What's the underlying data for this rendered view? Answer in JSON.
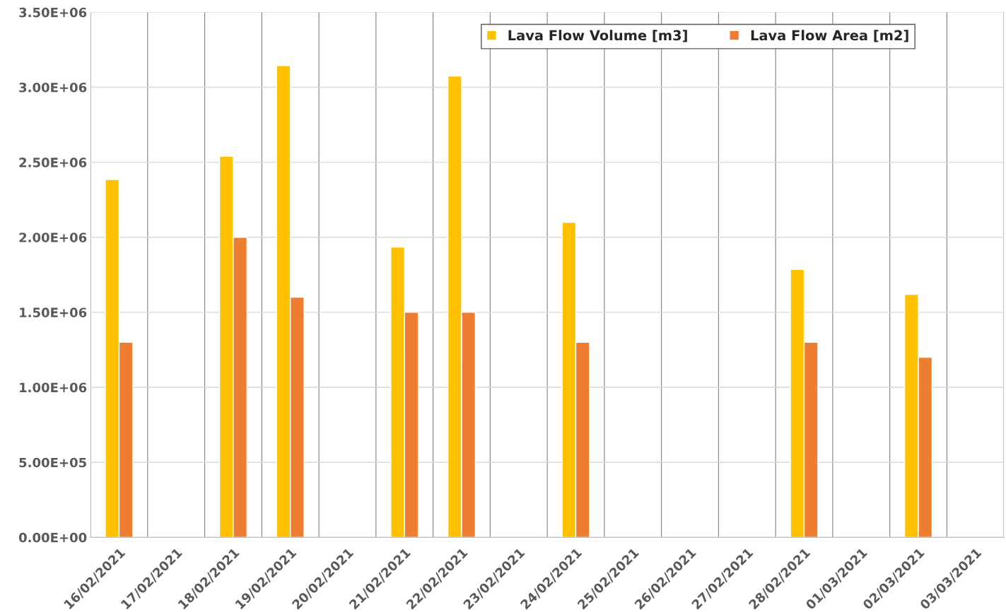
{
  "chart_data": {
    "type": "bar",
    "categories": [
      "16/02/2021",
      "17/02/2021",
      "18/02/2021",
      "19/02/2021",
      "20/02/2021",
      "21/02/2021",
      "22/02/2021",
      "23/02/2021",
      "24/02/2021",
      "25/02/2021",
      "26/02/2021",
      "27/02/2021",
      "28/02/2021",
      "01/03/2021",
      "02/03/2021",
      "03/03/2021"
    ],
    "series": [
      {
        "name": "Lava Flow Volume [m3]",
        "color": "#ffc000",
        "values": [
          2385000,
          null,
          2540000,
          3145000,
          null,
          1935000,
          3075000,
          null,
          2100000,
          null,
          null,
          null,
          1785000,
          null,
          1620000,
          null
        ]
      },
      {
        "name": "Lava Flow Area [m2]",
        "color": "#ed7d31",
        "values": [
          1300000,
          null,
          2000000,
          1600000,
          null,
          1500000,
          1500000,
          null,
          1300000,
          null,
          null,
          null,
          1300000,
          null,
          1200000,
          null
        ]
      }
    ],
    "ylim": [
      0,
      3500000
    ],
    "yticks": [
      {
        "value": 0,
        "label": "0.00E+00"
      },
      {
        "value": 500000,
        "label": "5.00E+05"
      },
      {
        "value": 1000000,
        "label": "1.00E+06"
      },
      {
        "value": 1500000,
        "label": "1.50E+06"
      },
      {
        "value": 2000000,
        "label": "2.00E+06"
      },
      {
        "value": 2500000,
        "label": "2.50E+06"
      },
      {
        "value": 3000000,
        "label": "3.00E+06"
      },
      {
        "value": 3500000,
        "label": "3.50E+06"
      }
    ],
    "grid": true,
    "legend": "top right"
  }
}
